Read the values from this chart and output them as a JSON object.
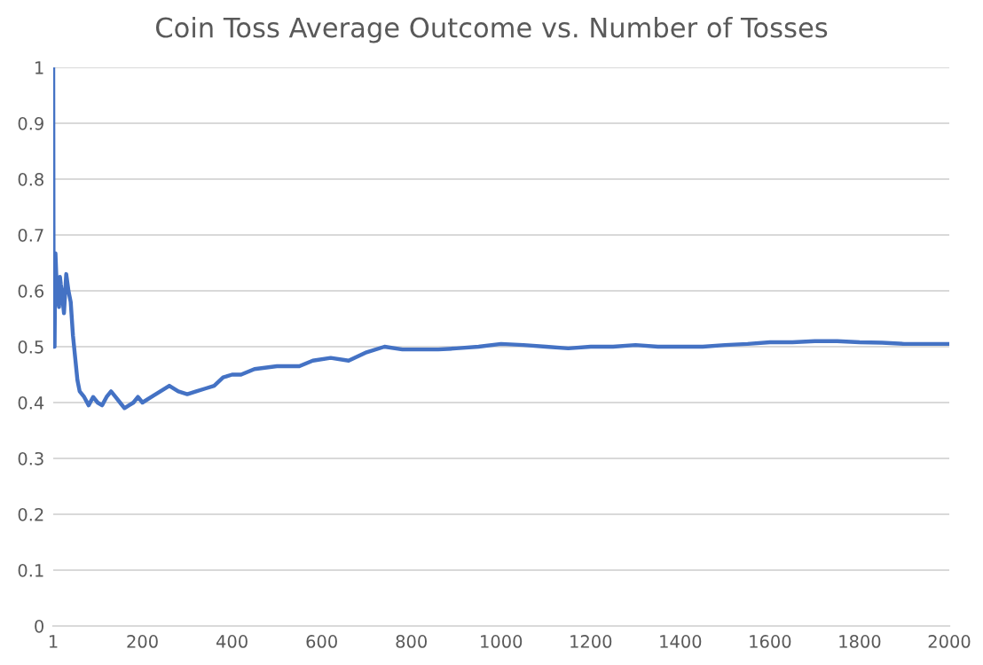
{
  "chart_data": {
    "type": "line",
    "title": "Coin Toss Average Outcome vs. Number of Tosses",
    "x": [
      1,
      2,
      3,
      4,
      5,
      6,
      8,
      10,
      12,
      14,
      16,
      18,
      20,
      25,
      30,
      35,
      40,
      45,
      50,
      55,
      60,
      70,
      80,
      90,
      100,
      110,
      120,
      130,
      140,
      150,
      160,
      170,
      180,
      190,
      200,
      220,
      240,
      260,
      280,
      300,
      320,
      340,
      360,
      380,
      400,
      420,
      450,
      500,
      550,
      580,
      620,
      660,
      700,
      740,
      780,
      820,
      860,
      900,
      950,
      1000,
      1050,
      1100,
      1150,
      1200,
      1250,
      1300,
      1350,
      1400,
      1450,
      1500,
      1550,
      1600,
      1650,
      1700,
      1750,
      1800,
      1850,
      1900,
      1950,
      2000
    ],
    "series": [
      {
        "color": "#4472c4",
        "values": [
          1,
          0.5,
          0.667,
          0.5,
          0.6,
          0.667,
          0.625,
          0.6,
          0.583,
          0.571,
          0.625,
          0.611,
          0.6,
          0.56,
          0.63,
          0.6,
          0.58,
          0.52,
          0.48,
          0.44,
          0.42,
          0.41,
          0.395,
          0.41,
          0.4,
          0.395,
          0.41,
          0.42,
          0.41,
          0.4,
          0.39,
          0.395,
          0.4,
          0.41,
          0.4,
          0.41,
          0.42,
          0.43,
          0.42,
          0.415,
          0.42,
          0.425,
          0.43,
          0.445,
          0.45,
          0.45,
          0.46,
          0.465,
          0.465,
          0.475,
          0.48,
          0.475,
          0.49,
          0.5,
          0.495,
          0.495,
          0.495,
          0.497,
          0.5,
          0.505,
          0.503,
          0.5,
          0.497,
          0.5,
          0.5,
          0.503,
          0.5,
          0.5,
          0.5,
          0.503,
          0.505,
          0.508,
          0.508,
          0.51,
          0.51,
          0.508,
          0.507,
          0.505,
          0.505,
          0.505
        ]
      }
    ],
    "xlim": [
      1,
      2000
    ],
    "xticks": [
      1,
      200,
      400,
      600,
      800,
      1000,
      1200,
      1400,
      1600,
      1800,
      2000
    ],
    "ylim": [
      0,
      1
    ],
    "yticks": [
      0,
      0.1,
      0.2,
      0.3,
      0.4,
      0.5,
      0.6,
      0.7,
      0.8,
      0.9,
      1
    ],
    "grid": "y",
    "legend": false,
    "marker": "none",
    "line_style": "solid"
  }
}
